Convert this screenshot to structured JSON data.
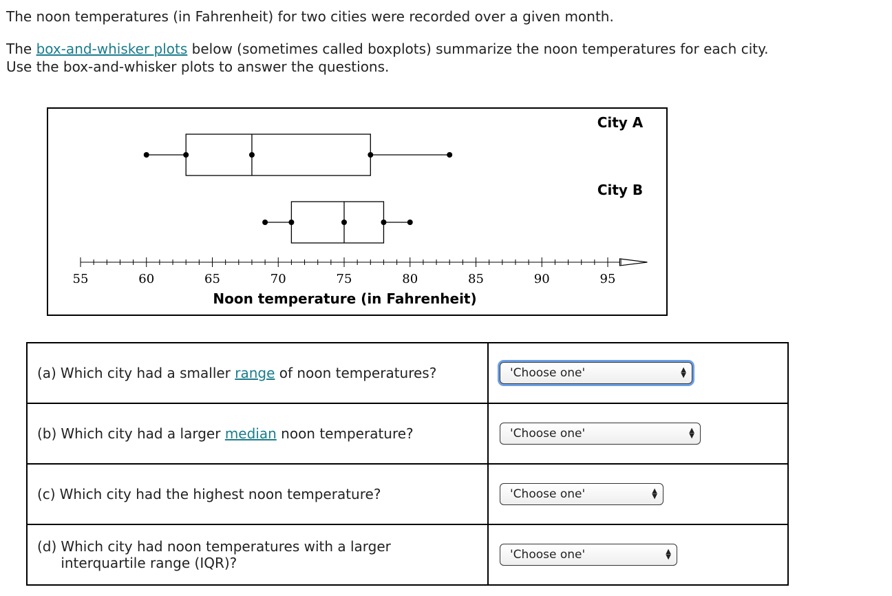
{
  "intro": {
    "line1": "The noon temperatures (in Fahrenheit) for two cities were recorded over a given month.",
    "line2_start": "The",
    "line2_link": "box-and-whisker plots",
    "line2_end": "below (sometimes called boxplots) summarize the noon temperatures for each city.",
    "line3": "Use the box-and-whisker plots to answer the questions."
  },
  "chart_data": {
    "type": "boxplot",
    "xlabel": "Noon temperature (in Fahrenheit)",
    "xlim": [
      55,
      98
    ],
    "xticks": [
      55,
      60,
      65,
      70,
      75,
      80,
      85,
      90,
      95
    ],
    "xminorticks": [
      56,
      57,
      58,
      59,
      61,
      62,
      63,
      64,
      66,
      67,
      68,
      69,
      71,
      72,
      73,
      74,
      76,
      77,
      78,
      79,
      81,
      82,
      83,
      84,
      86,
      87,
      88,
      89,
      91,
      92,
      93,
      94,
      96
    ],
    "color": "#000000",
    "series": [
      {
        "name": "City A",
        "min": 60,
        "q1": 63,
        "median": 68,
        "q3": 77,
        "max": 83
      },
      {
        "name": "City B",
        "min": 69,
        "q1": 71,
        "median": 75,
        "q3": 78,
        "max": 80
      }
    ]
  },
  "questions": [
    {
      "label": "(a)",
      "before": "Which city had a smaller",
      "link": "range",
      "after": "of noon temperatures?",
      "select": "'Choose one'"
    },
    {
      "label": "(b)",
      "before": "Which city had a larger",
      "link": "median",
      "after": "noon temperature?",
      "select": "'Choose one'"
    },
    {
      "label": "(c)",
      "before": "Which city had the highest noon temperature?",
      "select": "'Choose one'"
    },
    {
      "label": "(d)",
      "before": "Which city had noon temperatures with a larger interquartile range (IQR)?",
      "select": "'Choose one'"
    }
  ]
}
